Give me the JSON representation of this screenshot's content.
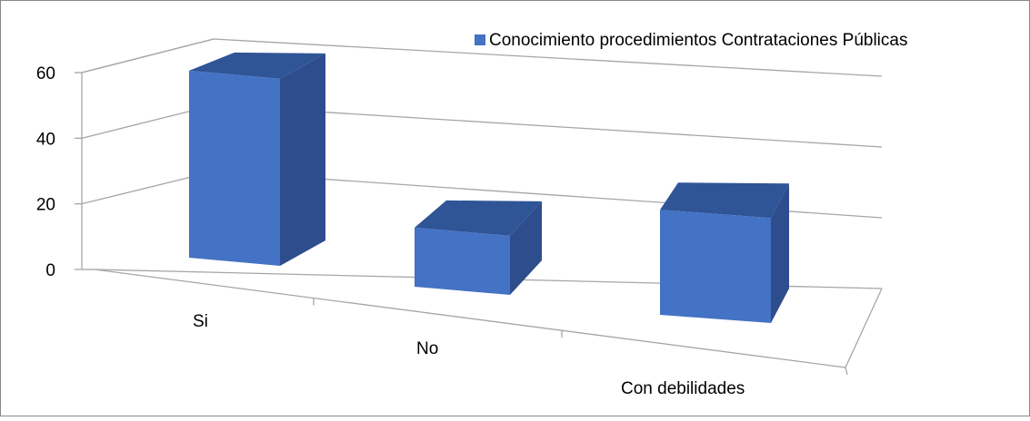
{
  "chart_data": {
    "type": "bar",
    "categories": [
      "Si",
      "No",
      "Con debilidades"
    ],
    "series": [
      {
        "name": "Conocimiento procedimientos Contrataciones Públicas",
        "values": [
          57,
          18,
          32
        ]
      }
    ],
    "ylim": [
      0,
      60
    ],
    "yticks": [
      "0",
      "20",
      "40",
      "60"
    ],
    "grid": true,
    "legend_position": "top-right",
    "style": "3d-column",
    "colors": {
      "front": "#4472C4",
      "top": "#2F5597",
      "side": "#2E4D8C",
      "gridline": "#A6A6A6"
    }
  }
}
